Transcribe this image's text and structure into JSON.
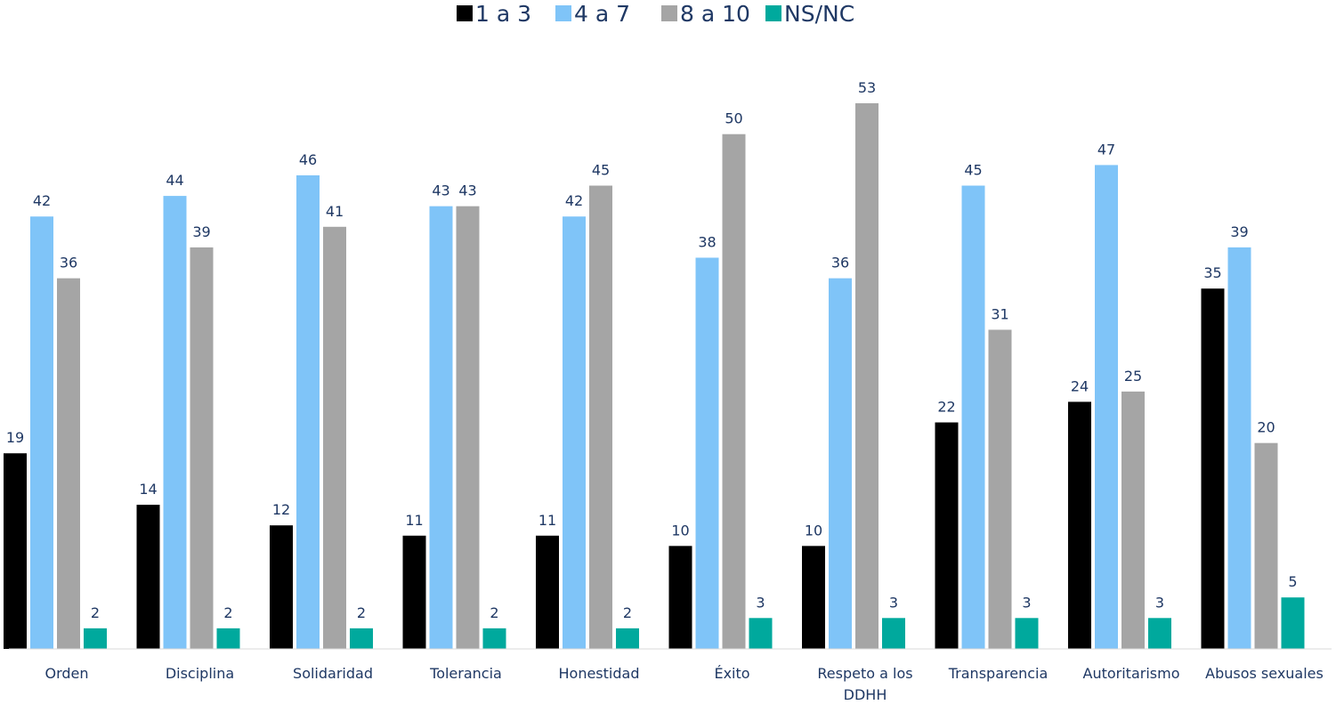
{
  "chart_data": {
    "type": "bar",
    "title": "",
    "xlabel": "",
    "ylabel": "",
    "ylim": [
      0,
      60
    ],
    "grid": false,
    "legend_position": "top-center",
    "categories": [
      [
        "Orden"
      ],
      [
        "Disciplina"
      ],
      [
        "Solidaridad"
      ],
      [
        "Tolerancia"
      ],
      [
        "Honestidad"
      ],
      [
        "Éxito"
      ],
      [
        "Respeto a los",
        "DDHH"
      ],
      [
        "Transparencia"
      ],
      [
        "Autoritarismo"
      ],
      [
        "Abusos sexuales"
      ]
    ],
    "series": [
      {
        "name": "1 a 3",
        "color": "#000000",
        "values": [
          19,
          14,
          12,
          11,
          11,
          10,
          10,
          22,
          24,
          35
        ]
      },
      {
        "name": "4 a 7",
        "color": "#7fc4f8",
        "values": [
          42,
          44,
          46,
          43,
          42,
          38,
          36,
          45,
          47,
          39
        ]
      },
      {
        "name": "8 a 10",
        "color": "#a5a5a5",
        "values": [
          36,
          39,
          41,
          43,
          45,
          50,
          53,
          31,
          25,
          20
        ]
      },
      {
        "name": "NS/NC",
        "color": "#00a99d",
        "values": [
          2,
          2,
          2,
          2,
          2,
          3,
          3,
          3,
          3,
          5
        ]
      }
    ]
  }
}
